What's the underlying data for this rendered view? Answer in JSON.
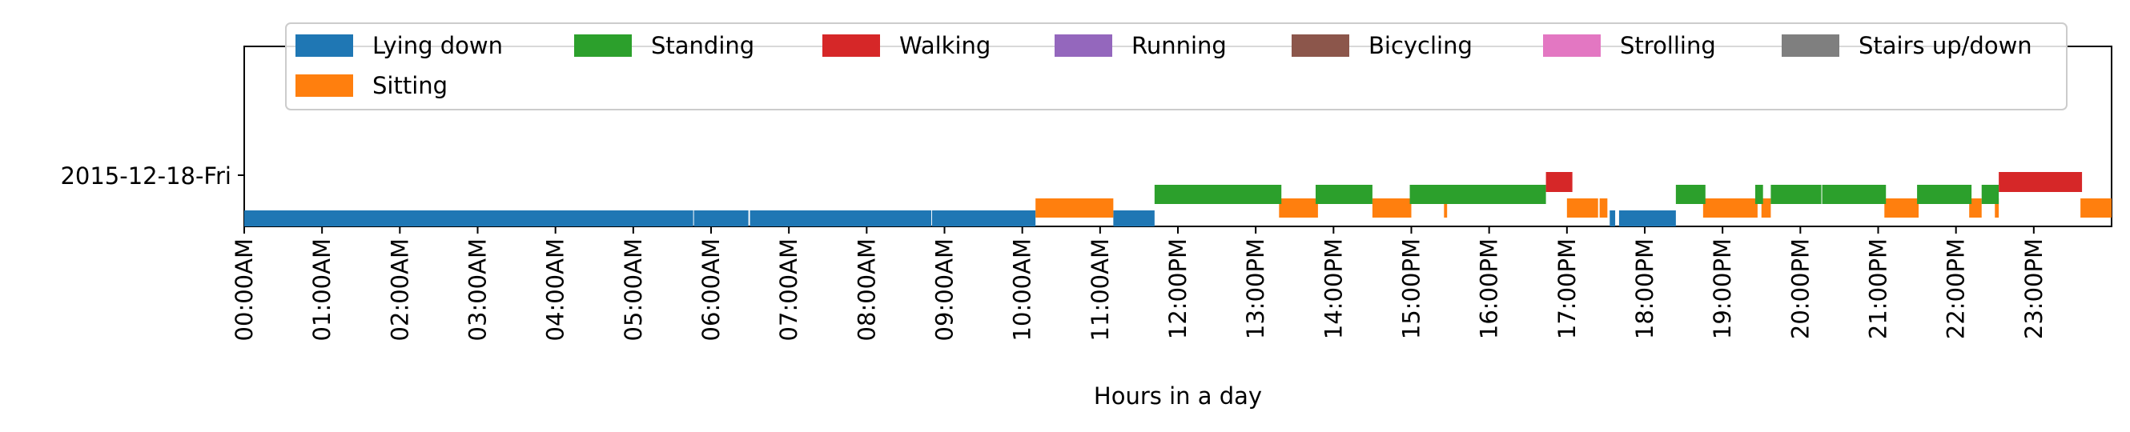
{
  "chart_data": {
    "type": "timeline",
    "xlabel": "Hours in a day",
    "xlim": [
      0,
      24
    ],
    "row_label": "2015-12-18-Fri",
    "tick_labels": [
      "00:00AM",
      "01:00AM",
      "02:00AM",
      "03:00AM",
      "04:00AM",
      "05:00AM",
      "06:00AM",
      "07:00AM",
      "08:00AM",
      "09:00AM",
      "10:00AM",
      "11:00AM",
      "12:00PM",
      "13:00PM",
      "14:00PM",
      "15:00PM",
      "16:00PM",
      "17:00PM",
      "18:00PM",
      "19:00PM",
      "20:00PM",
      "21:00PM",
      "22:00PM",
      "23:00PM"
    ],
    "legend": {
      "placement": "top",
      "items": [
        {
          "name": "Lying down",
          "color": "#1f77b4"
        },
        {
          "name": "Standing",
          "color": "#2ca02c"
        },
        {
          "name": "Walking",
          "color": "#d62728"
        },
        {
          "name": "Running",
          "color": "#9467bd"
        },
        {
          "name": "Bicycling",
          "color": "#8c564b"
        },
        {
          "name": "Strolling",
          "color": "#e377c2"
        },
        {
          "name": "Stairs up/down",
          "color": "#7f7f7f"
        },
        {
          "name": "Sitting",
          "color": "#ff7f0e"
        }
      ]
    },
    "series": [
      {
        "name": "Lying down",
        "color": "#1f77b4",
        "segments": [
          [
            0.0,
            5.77
          ],
          [
            5.78,
            6.48
          ],
          [
            6.5,
            8.83
          ],
          [
            8.84,
            10.17
          ],
          [
            11.17,
            11.7
          ],
          [
            17.55,
            17.62
          ],
          [
            17.67,
            18.4
          ]
        ]
      },
      {
        "name": "Sitting",
        "color": "#ff7f0e",
        "segments": [
          [
            10.17,
            11.17
          ],
          [
            13.3,
            13.8
          ],
          [
            14.5,
            15.0
          ],
          [
            15.42,
            15.46
          ],
          [
            17.0,
            17.4
          ],
          [
            17.42,
            17.52
          ],
          [
            18.75,
            19.45
          ],
          [
            19.5,
            19.62
          ],
          [
            21.08,
            21.52
          ],
          [
            22.17,
            22.33
          ],
          [
            22.5,
            22.55
          ],
          [
            23.6,
            24.0
          ]
        ]
      },
      {
        "name": "Standing",
        "color": "#2ca02c",
        "segments": [
          [
            11.7,
            13.33
          ],
          [
            13.77,
            14.5
          ],
          [
            14.98,
            16.73
          ],
          [
            18.4,
            18.78
          ],
          [
            19.42,
            19.52
          ],
          [
            19.62,
            20.27
          ],
          [
            20.28,
            21.1
          ],
          [
            21.5,
            22.2
          ],
          [
            22.33,
            22.55
          ]
        ]
      },
      {
        "name": "Walking",
        "color": "#d62728",
        "segments": [
          [
            16.73,
            17.07
          ],
          [
            22.55,
            23.62
          ]
        ]
      }
    ]
  }
}
